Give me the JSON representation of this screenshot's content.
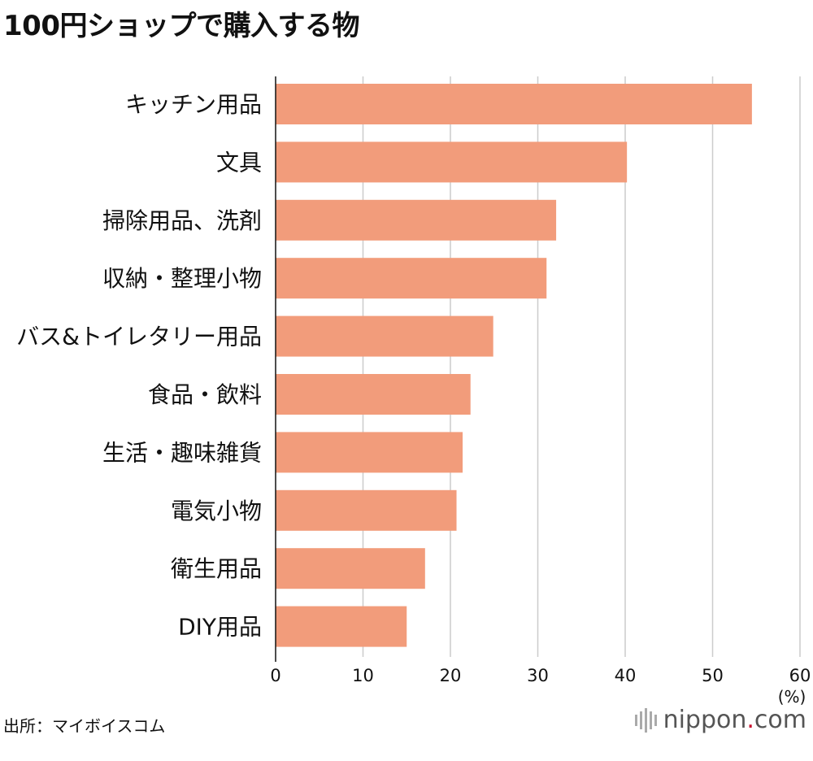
{
  "title": "100円ショップで購入する物",
  "chart_data": {
    "type": "bar",
    "orientation": "horizontal",
    "categories": [
      "キッチン用品",
      "文具",
      "掃除用品、洗剤",
      "収納・整理小物",
      "バス&トイレタリー用品",
      "食品・飲料",
      "生活・趣味雑貨",
      "電気小物",
      "衛生用品",
      "DIY用品"
    ],
    "values": [
      54.5,
      40.2,
      32.1,
      31.0,
      24.9,
      22.3,
      21.4,
      20.7,
      17.1,
      15.0
    ],
    "xlim": [
      0,
      60
    ],
    "xticks": [
      "0",
      "10",
      "20",
      "30",
      "40",
      "50",
      "60"
    ],
    "xunit": "(%)",
    "grid": true,
    "bar_color": "#f29c7b"
  },
  "source": "出所：マイボイスコム",
  "brand": {
    "name": "nippon",
    "dot": ".",
    "tld": "com",
    "accent": "#c8102e"
  }
}
